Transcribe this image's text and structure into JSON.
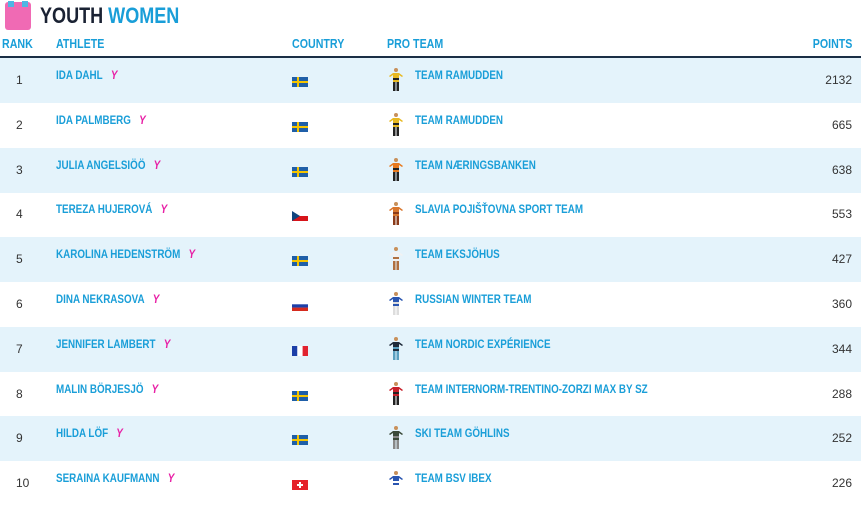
{
  "title": {
    "part1": "YOUTH",
    "part2": "WOMEN"
  },
  "headers": {
    "rank": "RANK",
    "athlete": "ATHLETE",
    "country": "COUNTRY",
    "team": "PRO TEAM",
    "points": "POINTS"
  },
  "youth_badge": "Y",
  "rows": [
    {
      "rank": "1",
      "athlete": "IDA DAHL",
      "country": "SWE",
      "team": "TEAM RAMUDDEN",
      "points": "2132",
      "jersey": "#e8b923",
      "jersey2": "#222"
    },
    {
      "rank": "2",
      "athlete": "IDA PALMBERG",
      "country": "SWE",
      "team": "TEAM RAMUDDEN",
      "points": "665",
      "jersey": "#e8b923",
      "jersey2": "#222"
    },
    {
      "rank": "3",
      "athlete": "JULIA ANGELSIÖÖ",
      "country": "SWE",
      "team": "TEAM NÆRINGSBANKEN",
      "points": "638",
      "jersey": "#e87a1e",
      "jersey2": "#222"
    },
    {
      "rank": "4",
      "athlete": "TEREZA HUJEROVÁ",
      "country": "CZE",
      "team": "SLAVIA POJIŠŤOVNA SPORT TEAM",
      "points": "553",
      "jersey": "#d9772e",
      "jersey2": "#8a3b1a"
    },
    {
      "rank": "5",
      "athlete": "KAROLINA HEDENSTRÖM",
      "country": "SWE",
      "team": "TEAM EKSJÖHUS",
      "points": "427",
      "jersey": "#f2f2f2",
      "jersey2": "#b07040"
    },
    {
      "rank": "6",
      "athlete": "DINA NEKRASOVA",
      "country": "RUS",
      "team": "RUSSIAN WINTER TEAM",
      "points": "360",
      "jersey": "#2a55b0",
      "jersey2": "#dddddd"
    },
    {
      "rank": "7",
      "athlete": "JENNIFER LAMBERT",
      "country": "FRA",
      "team": "TEAM NORDIC EXPÉRIENCE",
      "points": "344",
      "jersey": "#1e2a3a",
      "jersey2": "#5aa0c0"
    },
    {
      "rank": "8",
      "athlete": "MALIN BÖRJESJÖ",
      "country": "SWE",
      "team": "TEAM INTERNORM-TRENTINO-ZORZI MAX BY SZ",
      "points": "288",
      "jersey": "#c8202a",
      "jersey2": "#222"
    },
    {
      "rank": "9",
      "athlete": "HILDA LÖF",
      "country": "SWE",
      "team": "SKI TEAM GÖHLINS",
      "points": "252",
      "jersey": "#3a4a3a",
      "jersey2": "#888"
    },
    {
      "rank": "10",
      "athlete": "SERAINA KAUFMANN",
      "country": "SUI",
      "team": "TEAM BSV IBEX",
      "points": "226",
      "jersey": "#2a55b0",
      "jersey2": "#ffffff"
    }
  ]
}
